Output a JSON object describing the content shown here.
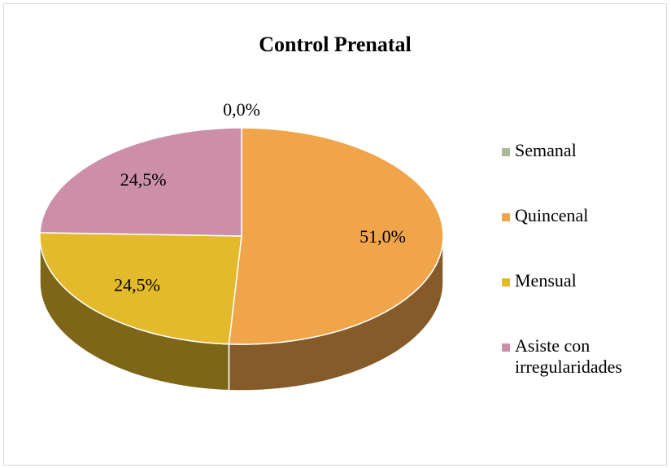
{
  "chart_data": {
    "type": "pie",
    "title": "Control Prenatal",
    "categories": [
      "Semanal",
      "Quincenal",
      "Mensual",
      "Asiste con irregularidades"
    ],
    "values": [
      0,
      51.0,
      24.5,
      24.5
    ],
    "value_labels": [
      "0,0%",
      "51,0%",
      "24,5%",
      "24,5%"
    ],
    "colors": [
      "#a9b89a",
      "#f0a54a",
      "#e3ba2b",
      "#cd8fa7"
    ],
    "legend": "right"
  }
}
